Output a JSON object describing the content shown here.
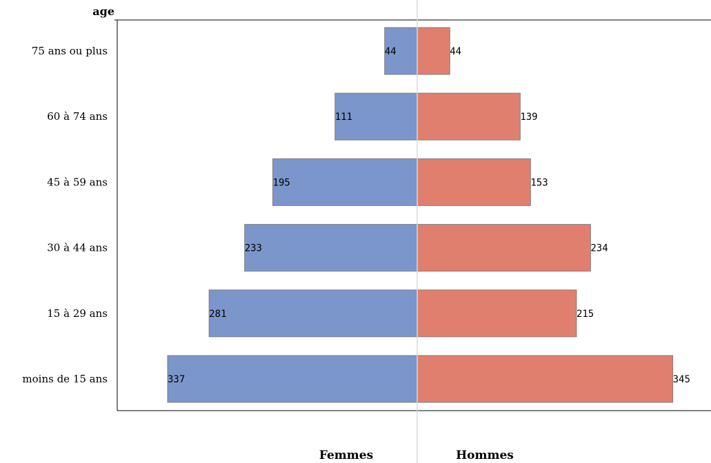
{
  "chart_data": {
    "type": "bar",
    "orientation": "horizontal",
    "layout": "population-pyramid",
    "ylabel": "age",
    "categories": [
      "75 ans ou plus",
      "60 à 74 ans",
      "45 à 59 ans",
      "30 à 44 ans",
      "15 à 29 ans",
      "moins de 15 ans"
    ],
    "series": [
      {
        "name": "Femmes",
        "side": "left",
        "color": "#7b96cb",
        "values": [
          44,
          111,
          195,
          233,
          281,
          337
        ]
      },
      {
        "name": "Hommes",
        "side": "right",
        "color": "#e17f6e",
        "values": [
          44,
          139,
          153,
          234,
          215,
          345
        ]
      }
    ],
    "legend_position": "bottom",
    "grid": false
  }
}
